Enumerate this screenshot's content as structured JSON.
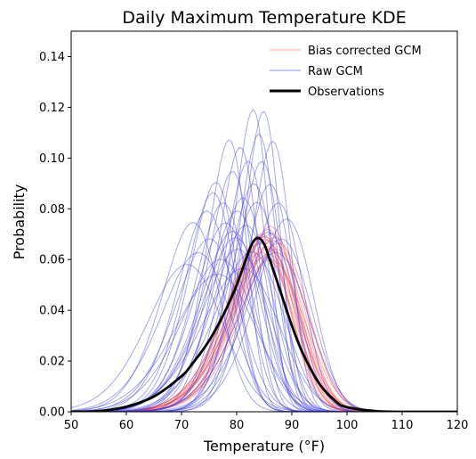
{
  "chart_data": {
    "type": "line",
    "title": "Daily Maximum Temperature KDE",
    "xlabel": "Temperature (°F)",
    "ylabel": "Probability",
    "xlim": [
      50,
      120
    ],
    "ylim": [
      0,
      0.15
    ],
    "x_ticks": [
      "50",
      "60",
      "70",
      "80",
      "90",
      "100",
      "110",
      "120"
    ],
    "y_ticks": [
      "0.00",
      "0.02",
      "0.04",
      "0.06",
      "0.08",
      "0.10",
      "0.12",
      "0.14"
    ],
    "grid": false,
    "legend_position": "top-right",
    "colors": {
      "bias_corrected": "#ff7777",
      "raw": "#5b5bdf",
      "observations": "#000000"
    },
    "series": [
      {
        "name": "Bias corrected GCM",
        "style": "thin translucent red lines",
        "curves": [
          {
            "mean": 83.0,
            "sd": 6.2,
            "skew": 5.0
          },
          {
            "mean": 83.6,
            "sd": 6.0,
            "skew": 5.5
          },
          {
            "mean": 84.2,
            "sd": 6.3,
            "skew": 4.8
          },
          {
            "mean": 84.8,
            "sd": 5.9,
            "skew": 5.6
          },
          {
            "mean": 85.2,
            "sd": 6.1,
            "skew": 5.0
          },
          {
            "mean": 83.3,
            "sd": 6.5,
            "skew": 4.4
          },
          {
            "mean": 84.5,
            "sd": 6.6,
            "skew": 4.6
          },
          {
            "mean": 85.6,
            "sd": 6.0,
            "skew": 5.2
          },
          {
            "mean": 82.8,
            "sd": 6.0,
            "skew": 5.8
          },
          {
            "mean": 84.0,
            "sd": 5.8,
            "skew": 6.0
          },
          {
            "mean": 85.9,
            "sd": 6.4,
            "skew": 4.7
          },
          {
            "mean": 83.9,
            "sd": 6.7,
            "skew": 4.3
          },
          {
            "mean": 84.6,
            "sd": 5.7,
            "skew": 5.9
          },
          {
            "mean": 83.1,
            "sd": 5.9,
            "skew": 5.3
          },
          {
            "mean": 86.2,
            "sd": 6.2,
            "skew": 5.0
          },
          {
            "mean": 84.4,
            "sd": 6.4,
            "skew": 4.9
          },
          {
            "mean": 85.0,
            "sd": 6.8,
            "skew": 4.2
          },
          {
            "mean": 83.7,
            "sd": 6.1,
            "skew": 5.4
          }
        ]
      },
      {
        "name": "Raw GCM",
        "style": "thin translucent blue lines",
        "curves": [
          {
            "mean": 75.0,
            "sd": 4.6,
            "skew": 5.8
          },
          {
            "mean": 76.5,
            "sd": 5.0,
            "skew": 5.0
          },
          {
            "mean": 78.0,
            "sd": 4.4,
            "skew": 6.0
          },
          {
            "mean": 80.0,
            "sd": 4.9,
            "skew": 5.3
          },
          {
            "mean": 82.0,
            "sd": 3.5,
            "skew": 6.0
          },
          {
            "mean": 84.0,
            "sd": 3.5,
            "skew": 5.5
          },
          {
            "mean": 83.0,
            "sd": 3.8,
            "skew": 5.8
          },
          {
            "mean": 79.0,
            "sd": 5.2,
            "skew": 5.0
          },
          {
            "mean": 74.0,
            "sd": 6.0,
            "skew": 4.5
          },
          {
            "mean": 77.0,
            "sd": 5.5,
            "skew": 4.6
          },
          {
            "mean": 81.0,
            "sd": 4.2,
            "skew": 5.6
          },
          {
            "mean": 85.0,
            "sd": 4.6,
            "skew": 5.2
          },
          {
            "mean": 86.5,
            "sd": 5.0,
            "skew": 5.0
          },
          {
            "mean": 87.0,
            "sd": 6.0,
            "skew": 4.5
          },
          {
            "mean": 72.0,
            "sd": 6.5,
            "skew": 4.2
          },
          {
            "mean": 70.0,
            "sd": 7.0,
            "skew": 4.0
          },
          {
            "mean": 78.5,
            "sd": 6.0,
            "skew": 5.0
          },
          {
            "mean": 80.5,
            "sd": 5.6,
            "skew": 5.0
          },
          {
            "mean": 82.5,
            "sd": 5.0,
            "skew": 5.2
          },
          {
            "mean": 76.0,
            "sd": 6.8,
            "skew": 4.4
          },
          {
            "mean": 79.5,
            "sd": 4.0,
            "skew": 6.0
          },
          {
            "mean": 81.5,
            "sd": 6.5,
            "skew": 4.6
          },
          {
            "mean": 84.5,
            "sd": 5.8,
            "skew": 4.8
          },
          {
            "mean": 73.5,
            "sd": 5.2,
            "skew": 5.0
          },
          {
            "mean": 77.5,
            "sd": 3.9,
            "skew": 6.2
          },
          {
            "mean": 86.0,
            "sd": 6.5,
            "skew": 4.4
          },
          {
            "mean": 75.5,
            "sd": 7.5,
            "skew": 4.0
          },
          {
            "mean": 83.5,
            "sd": 4.2,
            "skew": 5.6
          },
          {
            "mean": 80.0,
            "sd": 7.2,
            "skew": 4.2
          },
          {
            "mean": 78.0,
            "sd": 5.8,
            "skew": 5.2
          },
          {
            "mean": 85.5,
            "sd": 3.9,
            "skew": 5.8
          },
          {
            "mean": 71.0,
            "sd": 5.5,
            "skew": 4.8
          },
          {
            "mean": 82.0,
            "sd": 4.6,
            "skew": 5.4
          },
          {
            "mean": 74.5,
            "sd": 4.8,
            "skew": 5.6
          },
          {
            "mean": 88.0,
            "sd": 5.4,
            "skew": 4.8
          },
          {
            "mean": 79.0,
            "sd": 6.4,
            "skew": 4.7
          }
        ]
      },
      {
        "name": "Observations",
        "style": "thick black line",
        "x": [
          50,
          55,
          60,
          65,
          70,
          72,
          75,
          78,
          80,
          82,
          83,
          84,
          85,
          86,
          88,
          90,
          92,
          95,
          98,
          100,
          105,
          110,
          120
        ],
        "y": [
          0.0,
          0.0003,
          0.002,
          0.006,
          0.014,
          0.019,
          0.028,
          0.04,
          0.05,
          0.062,
          0.067,
          0.0685,
          0.066,
          0.06,
          0.047,
          0.034,
          0.023,
          0.011,
          0.004,
          0.0018,
          0.0003,
          0.0,
          0.0
        ]
      }
    ]
  }
}
